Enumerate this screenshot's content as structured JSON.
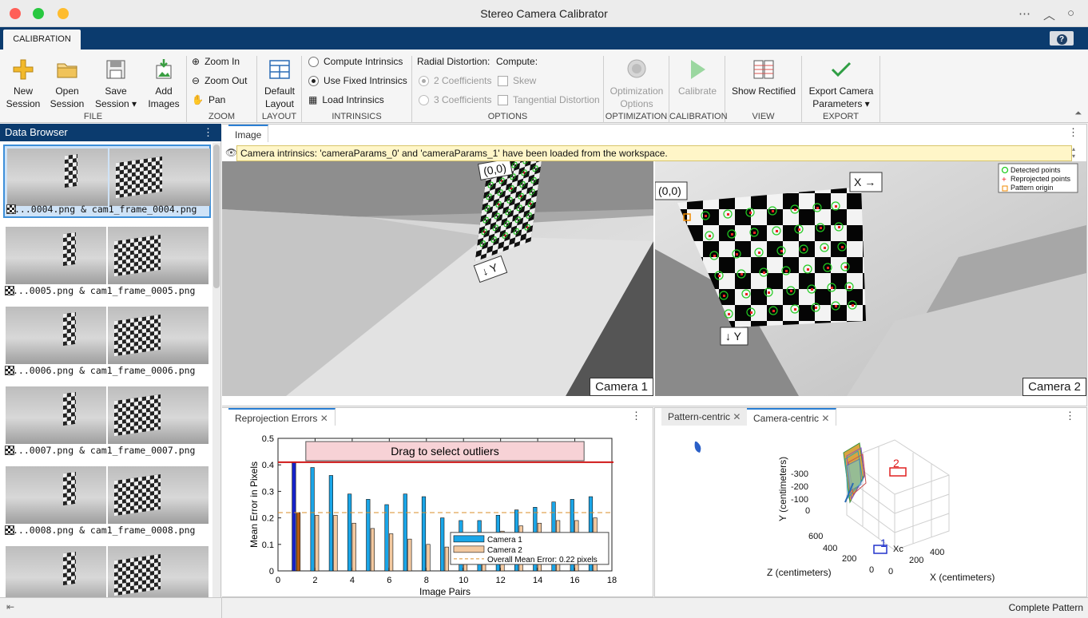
{
  "window": {
    "title": "Stereo Camera Calibrator"
  },
  "tabs": {
    "calibration": "CALIBRATION",
    "help": "?"
  },
  "ribbon": {
    "file": {
      "label": "FILE",
      "new_session": "New\nSession",
      "open_session": "Open\nSession",
      "save_session": "Save\nSession ▾",
      "add_images": "Add\nImages"
    },
    "zoom": {
      "label": "ZOOM",
      "zoom_in": "Zoom In",
      "zoom_out": "Zoom Out",
      "pan": "Pan"
    },
    "layout": {
      "label": "LAYOUT",
      "default_layout": "Default\nLayout"
    },
    "intrinsics": {
      "label": "INTRINSICS",
      "compute": "Compute Intrinsics",
      "use_fixed": "Use Fixed Intrinsics",
      "load": "Load Intrinsics",
      "selected": "use_fixed"
    },
    "options": {
      "label": "OPTIONS",
      "radial_distortion": "Radial Distortion:",
      "compute": "Compute:",
      "two_coeff": "2 Coefficients",
      "three_coeff": "3 Coefficients",
      "skew": "Skew",
      "tangential": "Tangential Distortion"
    },
    "optimization": {
      "label": "OPTIMIZATION",
      "options": "Optimization\nOptions"
    },
    "calibration": {
      "label": "CALIBRATION",
      "calibrate": "Calibrate"
    },
    "view": {
      "label": "VIEW",
      "show_rectified": "Show Rectified"
    },
    "export": {
      "label": "EXPORT",
      "export_params": "Export Camera\nParameters ▾"
    }
  },
  "data_browser": {
    "title": "Data Browser",
    "items": [
      {
        "caption": "...0004.png & cam1_frame_0004.png",
        "selected": true
      },
      {
        "caption": "...0005.png & cam1_frame_0005.png",
        "selected": false
      },
      {
        "caption": "...0006.png & cam1_frame_0006.png",
        "selected": false
      },
      {
        "caption": "...0007.png & cam1_frame_0007.png",
        "selected": false
      },
      {
        "caption": "...0008.png & cam1_frame_0008.png",
        "selected": false
      },
      {
        "caption": "",
        "selected": false
      }
    ]
  },
  "image_panel": {
    "tab": "Image",
    "info": "Camera intrinsics: 'cameraParams_0' and 'cameraParams_1' have been loaded from the workspace.",
    "camera1": "Camera 1",
    "camera2": "Camera 2",
    "origin_label": "(0,0)",
    "y_label": "↓ Y",
    "x_label": "X →",
    "legend": [
      "Detected points",
      "Reprojected points",
      "Pattern origin"
    ]
  },
  "reprojection": {
    "tab": "Reprojection Errors",
    "drag_label": "Drag to select outliers"
  },
  "extrinsics": {
    "tabs": [
      "Pattern-centric",
      "Camera-centric"
    ],
    "active_tab": "Camera-centric",
    "ylabel": "Y (centimeters)",
    "zlabel": "Z (centimeters)",
    "xlabel": "X (centimeters)",
    "y_ticks": [
      "-300",
      "-200",
      "-100",
      "0"
    ],
    "z_ticks": [
      "600",
      "400",
      "200",
      "0"
    ],
    "x_ticks": [
      "0",
      "200",
      "400"
    ],
    "marker1": "1",
    "marker2": "2",
    "xc": "Xc"
  },
  "chart_data": {
    "type": "bar",
    "xlabel": "Image Pairs",
    "ylabel": "Mean Error in Pixels",
    "xlim": [
      0,
      18
    ],
    "ylim": [
      0,
      0.5
    ],
    "x_ticks": [
      0,
      2,
      4,
      6,
      8,
      10,
      12,
      14,
      16,
      18
    ],
    "y_ticks": [
      0,
      0.1,
      0.2,
      0.3,
      0.4,
      0.5
    ],
    "categories": [
      1,
      2,
      3,
      4,
      5,
      6,
      7,
      8,
      9,
      10,
      11,
      12,
      13,
      14,
      15,
      16,
      17
    ],
    "series": [
      {
        "name": "Camera 1",
        "color": "#1aa6e8",
        "values": [
          0.41,
          0.39,
          0.36,
          0.29,
          0.27,
          0.25,
          0.29,
          0.28,
          0.2,
          0.19,
          0.19,
          0.21,
          0.23,
          0.24,
          0.26,
          0.27,
          0.28
        ]
      },
      {
        "name": "Camera 2",
        "color": "#f3c9a0",
        "values": [
          0.22,
          0.21,
          0.21,
          0.18,
          0.16,
          0.14,
          0.12,
          0.1,
          0.09,
          0.1,
          0.1,
          0.15,
          0.17,
          0.18,
          0.19,
          0.19,
          0.2
        ]
      }
    ],
    "mean_error": 0.22,
    "threshold": 0.41,
    "selected_pair": 1,
    "legend_mean": "Overall Mean Error: 0.22 pixels"
  },
  "status": {
    "text": "Complete Pattern"
  }
}
